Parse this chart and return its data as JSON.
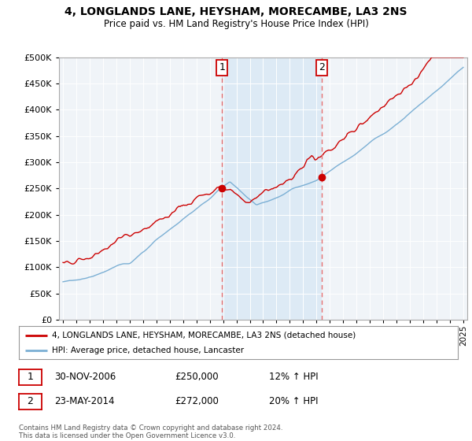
{
  "title": "4, LONGLANDS LANE, HEYSHAM, MORECAMBE, LA3 2NS",
  "subtitle": "Price paid vs. HM Land Registry's House Price Index (HPI)",
  "legend_label_red": "4, LONGLANDS LANE, HEYSHAM, MORECAMBE, LA3 2NS (detached house)",
  "legend_label_blue": "HPI: Average price, detached house, Lancaster",
  "transaction1_label": "1",
  "transaction1_date": "30-NOV-2006",
  "transaction1_price": "£250,000",
  "transaction1_hpi": "12% ↑ HPI",
  "transaction2_label": "2",
  "transaction2_date": "23-MAY-2014",
  "transaction2_price": "£272,000",
  "transaction2_hpi": "20% ↑ HPI",
  "footer": "Contains HM Land Registry data © Crown copyright and database right 2024.\nThis data is licensed under the Open Government Licence v3.0.",
  "ylim": [
    0,
    500000
  ],
  "yticks": [
    0,
    50000,
    100000,
    150000,
    200000,
    250000,
    300000,
    350000,
    400000,
    450000,
    500000
  ],
  "red_color": "#cc0000",
  "blue_color": "#7bafd4",
  "vline_color": "#e87070",
  "shade_color": "#ddeaf5",
  "background_color": "#ffffff",
  "plot_bg_color": "#f0f4f8",
  "transaction1_x": 2006.92,
  "transaction1_y": 250000,
  "transaction2_x": 2014.39,
  "transaction2_y": 272000,
  "xmin": 1995,
  "xmax": 2025
}
